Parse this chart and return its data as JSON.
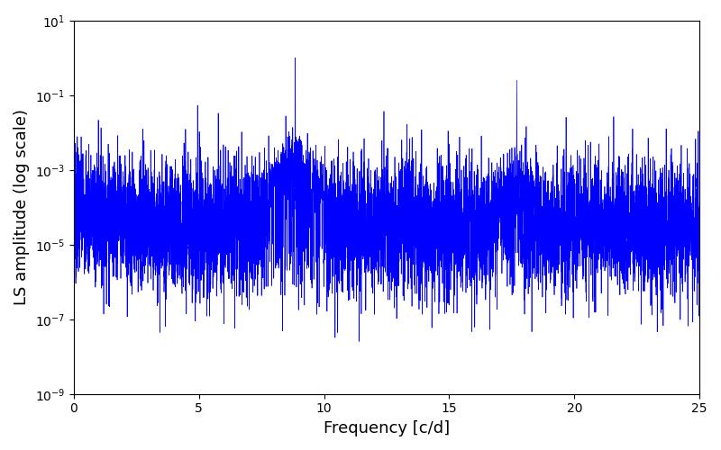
{
  "title": "",
  "xlabel": "Frequency [c/d]",
  "ylabel": "LS amplitude (log scale)",
  "xlim": [
    0,
    25
  ],
  "ylim": [
    1e-09,
    10
  ],
  "line_color": "#0000FF",
  "line_width": 0.5,
  "background_color": "#ffffff",
  "figsize": [
    8.0,
    5.0
  ],
  "dpi": 100,
  "freq_min": 0.0,
  "freq_max": 25.0,
  "n_points": 8000,
  "main_peak_freq": 8.85,
  "main_peak_amp": 1.0,
  "second_peak_freq": 17.7,
  "second_peak_amp": 0.25,
  "third_peak_freq": 13.3,
  "third_peak_amp": 0.003,
  "fourth_peak_freq": 5.8,
  "fourth_peak_amp": 0.00015,
  "fifth_peak_freq": 22.0,
  "fifth_peak_amp": 0.00013,
  "noise_baseline": 3e-05,
  "noise_seed": 7
}
